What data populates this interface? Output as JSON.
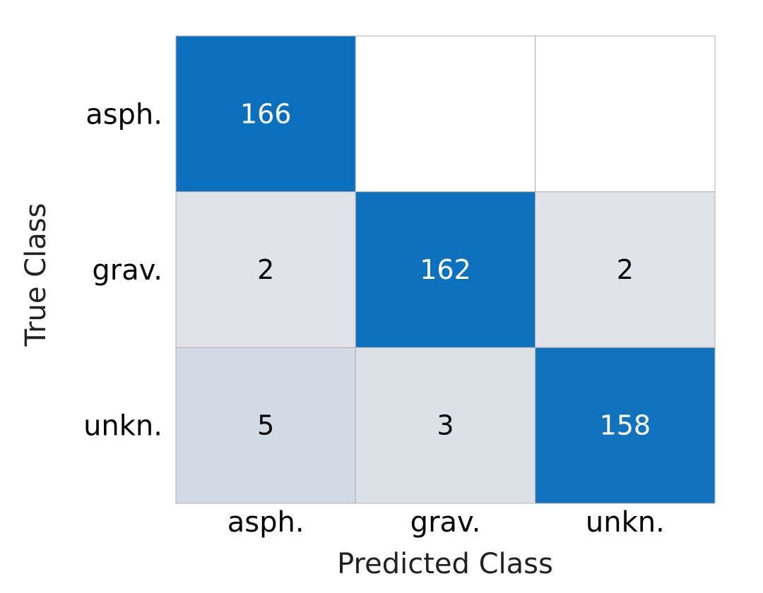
{
  "chart_data": {
    "type": "heatmap",
    "title": "",
    "xlabel": "Predicted Class",
    "ylabel": "True Class",
    "x_categories": [
      "asph.",
      "grav.",
      "unkn."
    ],
    "y_categories": [
      "asph.",
      "grav.",
      "unkn."
    ],
    "values": [
      [
        166,
        null,
        null
      ],
      [
        2,
        162,
        2
      ],
      [
        5,
        3,
        158
      ]
    ],
    "colors": {
      "high": "#0b6fbd",
      "low": "#fcf1ee",
      "empty": "#ffffff",
      "grid": "#b0b0b0",
      "text_on_high": "#ffffff",
      "text_on_low": "#000000"
    }
  }
}
